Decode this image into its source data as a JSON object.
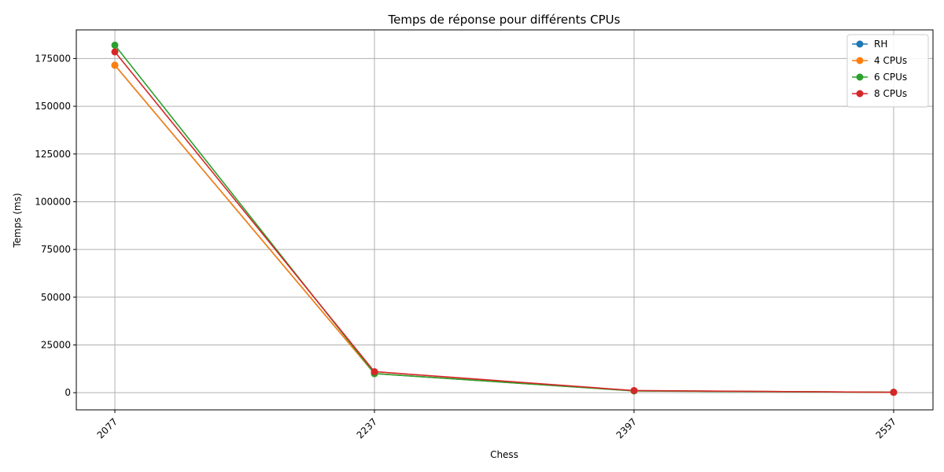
{
  "chart_data": {
    "type": "line",
    "title": "Temps de réponse pour différents CPUs",
    "xlabel": "Chess",
    "ylabel": "Temps (ms)",
    "x": [
      2077,
      2237,
      2397,
      2557
    ],
    "x_tick_labels": [
      "2077",
      "2237",
      "2397",
      "2557"
    ],
    "ylim": [
      -9000,
      190000
    ],
    "y_ticks": [
      0,
      25000,
      50000,
      75000,
      100000,
      125000,
      150000,
      175000
    ],
    "y_tick_labels": [
      "0",
      "25000",
      "50000",
      "75000",
      "100000",
      "125000",
      "150000",
      "175000"
    ],
    "grid": true,
    "legend_position": "top-right",
    "series": [
      {
        "name": "RH",
        "color": "#1f77b4",
        "values": [
          171500,
          10000,
          1000,
          200
        ]
      },
      {
        "name": "4 CPUs",
        "color": "#ff7f0e",
        "values": [
          171500,
          10000,
          1000,
          200
        ]
      },
      {
        "name": "6 CPUs",
        "color": "#2ca02c",
        "values": [
          182000,
          10000,
          900,
          200
        ]
      },
      {
        "name": "8 CPUs",
        "color": "#d62728",
        "values": [
          178500,
          11000,
          1100,
          200
        ]
      }
    ]
  }
}
